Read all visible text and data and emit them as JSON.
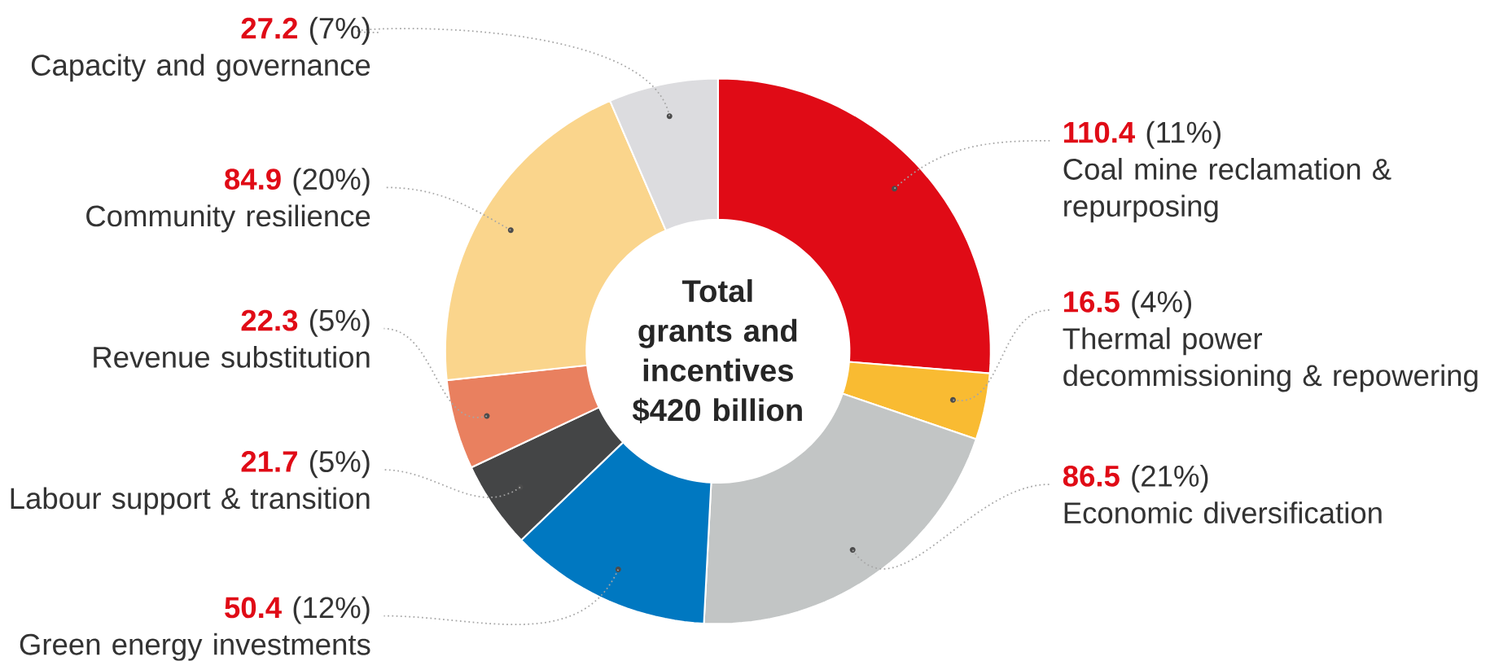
{
  "chart_data": {
    "type": "donut",
    "title": "Total grants and incentives $420 billion",
    "categories": [
      "Coal mine reclamation & repurposing",
      "Thermal power decommissioning & repowering",
      "Economic diversification",
      "Green energy investments",
      "Labour support & transition",
      "Revenue substitution",
      "Community resilience",
      "Capacity and governance"
    ],
    "values": [
      110.4,
      16.5,
      86.5,
      50.4,
      21.7,
      22.3,
      84.9,
      27.2
    ],
    "value_labels": [
      "**110.4** (11%)",
      "**16.5** (4%)",
      "**86.5** (21%)",
      "**50.4** (12%)",
      "**21.7** (5%)",
      "**22.3** (5%)",
      "**84.9** (20%)",
      "**27.2** (7%)"
    ],
    "colors": [
      "#e00b16",
      "#f9bb32",
      "#c2c5c5",
      "#0078c1",
      "#444546",
      "#e9805f",
      "#fad58c",
      "#dcdcdf"
    ]
  }
}
